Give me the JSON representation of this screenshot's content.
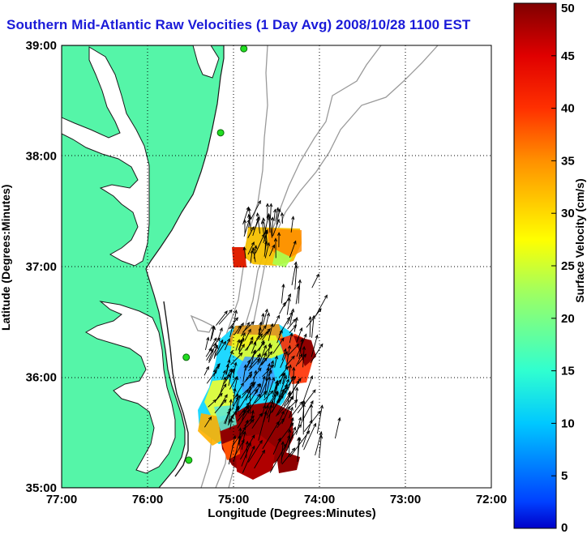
{
  "title": "Southern Mid-Atlantic Raw Velocities (1 Day Avg) 2008/10/28 1100 EST",
  "map": {
    "xlabel": "Longitude (Degrees:Minutes)",
    "ylabel": "Latitude (Degrees:Minutes)",
    "x_ticks": [
      "77:00",
      "76:00",
      "75:00",
      "74:00",
      "73:00",
      "72:00"
    ],
    "y_ticks": [
      "39:00",
      "38:00",
      "37:00",
      "36:00",
      "35:00"
    ],
    "lon_range": [
      -77,
      -72
    ],
    "lat_range": [
      35,
      39
    ],
    "grid": "dotted",
    "land_color": "#55f5a8",
    "coast_color": "#000000",
    "bathymetry_color": "#9a9a9a",
    "station_color": "#22dd22"
  },
  "colorbar": {
    "label": "Surface Velocity (cm/s)",
    "ticks": [
      "0",
      "5",
      "10",
      "15",
      "20",
      "25",
      "30",
      "35",
      "40",
      "45",
      "50"
    ],
    "range": [
      0,
      50
    ],
    "colormap": "jet",
    "placement": "right"
  },
  "stations": [
    {
      "lon": -74.88,
      "lat": 38.97
    },
    {
      "lon": -75.15,
      "lat": 38.21
    },
    {
      "lon": -75.55,
      "lat": 36.18
    },
    {
      "lon": -75.52,
      "lat": 35.25
    }
  ]
}
